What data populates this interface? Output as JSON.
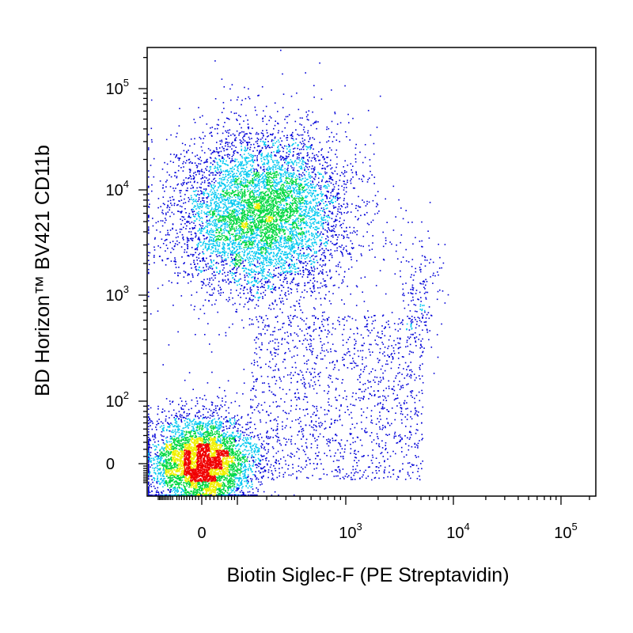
{
  "chart_data": {
    "type": "scatter",
    "title": "",
    "xlabel": "Biotin Siglec-F  (PE Streptavidin)",
    "ylabel": "BD Horizon™ BV421 CD11b",
    "x_scale": "biexponential",
    "y_scale": "biexponential",
    "xlim": [
      -200,
      200000
    ],
    "ylim": [
      -100,
      250000
    ],
    "grid": false,
    "legend": "none",
    "color_scale": "density (blue → cyan → green → yellow → red)",
    "x_ticks": [
      {
        "value": 0,
        "base": "0",
        "exp": ""
      },
      {
        "value": 1000,
        "base": "10",
        "exp": "3"
      },
      {
        "value": 10000,
        "base": "10",
        "exp": "4"
      },
      {
        "value": 100000,
        "base": "10",
        "exp": "5"
      }
    ],
    "y_ticks": [
      {
        "value": 0,
        "base": "0",
        "exp": ""
      },
      {
        "value": 100,
        "base": "10",
        "exp": "2"
      },
      {
        "value": 1000,
        "base": "10",
        "exp": "3"
      },
      {
        "value": 10000,
        "base": "10",
        "exp": "4"
      },
      {
        "value": 100000,
        "base": "10",
        "exp": "5"
      }
    ],
    "populations": [
      {
        "center_x": 0,
        "center_y": 0,
        "events": 5200
      },
      {
        "center_x": 180,
        "center_y": 6000,
        "events": 6500
      },
      {
        "center_x": 5000,
        "center_y": 1000,
        "events": 180
      },
      {
        "center_x": 700,
        "center_y": 200,
        "events": 1400
      }
    ],
    "colors": {
      "low": "#0000d8",
      "mid_low": "#00c8f0",
      "mid": "#00d840",
      "mid_high": "#f0f000",
      "high": "#f00000",
      "axis": "#000000"
    }
  }
}
